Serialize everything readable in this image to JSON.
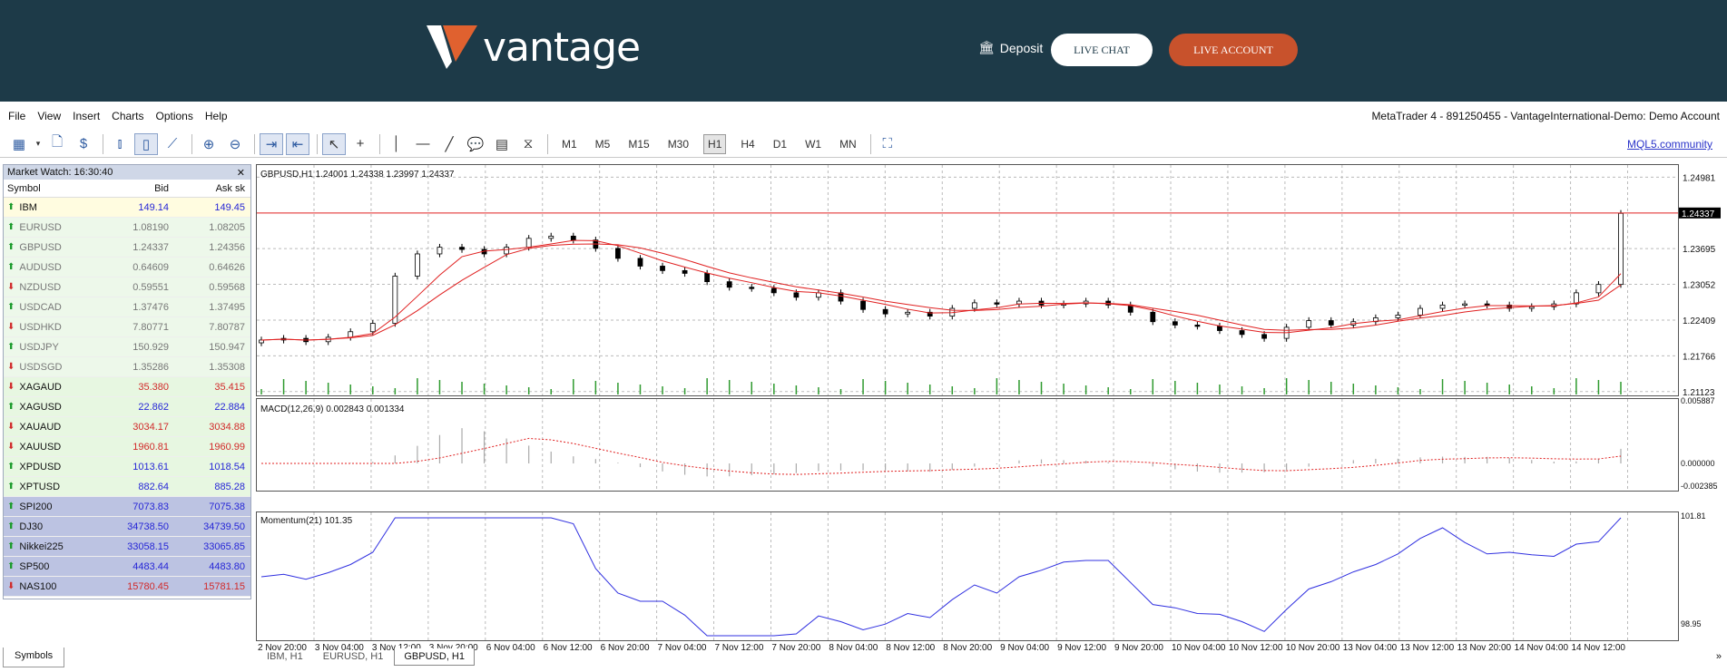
{
  "header": {
    "logo_text": "vantage",
    "deposit_label": "Deposit",
    "chat_label": "LIVE CHAT",
    "account_label": "LIVE ACCOUNT"
  },
  "menu": [
    "File",
    "View",
    "Insert",
    "Charts",
    "Options",
    "Help"
  ],
  "app_info": "MetaTrader 4 - 891250455 - VantageInternational-Demo: Demo Account",
  "toolbar": {
    "timeframes": [
      "M1",
      "M5",
      "M15",
      "M30",
      "H1",
      "H4",
      "D1",
      "W1",
      "MN"
    ],
    "active_timeframe": "H1",
    "mql_link": "MQL5.community"
  },
  "market_watch": {
    "title": "Market Watch: 16:30:40",
    "columns": [
      "Symbol",
      "Bid",
      "Ask"
    ],
    "ask_extra": "sk",
    "rows": [
      {
        "symbol": "IBM",
        "bid": "149.14",
        "ask": "149.45",
        "dir": "up",
        "group": "stock"
      },
      {
        "symbol": "EURUSD",
        "bid": "1.08190",
        "ask": "1.08205",
        "dir": "up",
        "group": "fx"
      },
      {
        "symbol": "GBPUSD",
        "bid": "1.24337",
        "ask": "1.24356",
        "dir": "up",
        "group": "fx"
      },
      {
        "symbol": "AUDUSD",
        "bid": "0.64609",
        "ask": "0.64626",
        "dir": "up",
        "group": "fx"
      },
      {
        "symbol": "NZDUSD",
        "bid": "0.59551",
        "ask": "0.59568",
        "dir": "dn",
        "group": "fx"
      },
      {
        "symbol": "USDCAD",
        "bid": "1.37476",
        "ask": "1.37495",
        "dir": "up",
        "group": "fx"
      },
      {
        "symbol": "USDHKD",
        "bid": "7.80771",
        "ask": "7.80787",
        "dir": "dn",
        "group": "fx"
      },
      {
        "symbol": "USDJPY",
        "bid": "150.929",
        "ask": "150.947",
        "dir": "up",
        "group": "fx"
      },
      {
        "symbol": "USDSGD",
        "bid": "1.35286",
        "ask": "1.35308",
        "dir": "dn",
        "group": "fx"
      },
      {
        "symbol": "XAGAUD",
        "bid": "35.380",
        "ask": "35.415",
        "dir": "dn",
        "group": "metal",
        "color": "red"
      },
      {
        "symbol": "XAGUSD",
        "bid": "22.862",
        "ask": "22.884",
        "dir": "up",
        "group": "metal",
        "color": "blue"
      },
      {
        "symbol": "XAUAUD",
        "bid": "3034.17",
        "ask": "3034.88",
        "dir": "dn",
        "group": "metal",
        "color": "red"
      },
      {
        "symbol": "XAUUSD",
        "bid": "1960.81",
        "ask": "1960.99",
        "dir": "dn",
        "group": "metal",
        "color": "red"
      },
      {
        "symbol": "XPDUSD",
        "bid": "1013.61",
        "ask": "1018.54",
        "dir": "up",
        "group": "metal",
        "color": "blue"
      },
      {
        "symbol": "XPTUSD",
        "bid": "882.64",
        "ask": "885.28",
        "dir": "up",
        "group": "metal",
        "color": "blue"
      },
      {
        "symbol": "SPI200",
        "bid": "7073.83",
        "ask": "7075.38",
        "dir": "up",
        "group": "index",
        "color": "blue"
      },
      {
        "symbol": "DJ30",
        "bid": "34738.50",
        "ask": "34739.50",
        "dir": "up",
        "group": "index",
        "color": "blue"
      },
      {
        "symbol": "Nikkei225",
        "bid": "33058.15",
        "ask": "33065.85",
        "dir": "up",
        "group": "index",
        "color": "blue"
      },
      {
        "symbol": "SP500",
        "bid": "4483.44",
        "ask": "4483.80",
        "dir": "up",
        "group": "index",
        "color": "blue"
      },
      {
        "symbol": "NAS100",
        "bid": "15780.45",
        "ask": "15781.15",
        "dir": "dn",
        "group": "index",
        "color": "red"
      }
    ],
    "tab": "Symbols"
  },
  "chart_tabs": [
    {
      "label": "IBM, H1",
      "active": false
    },
    {
      "label": "EURUSD, H1",
      "active": false
    },
    {
      "label": "GBPUSD, H1",
      "active": true
    }
  ],
  "chart_data": {
    "type": "line",
    "title": "GBPUSD,H1  1.24001 1.24338 1.23997 1.24337",
    "price_axis": [
      "1.24981",
      "1.23695",
      "1.23052",
      "1.22409",
      "1.21766",
      "1.21123"
    ],
    "current_price": "1.24337",
    "ylim": [
      1.2107,
      1.2515
    ],
    "x_labels": [
      "2 Nov 20:00",
      "3 Nov 04:00",
      "3 Nov 12:00",
      "3 Nov 20:00",
      "6 Nov 04:00",
      "6 Nov 12:00",
      "6 Nov 20:00",
      "7 Nov 04:00",
      "7 Nov 12:00",
      "7 Nov 20:00",
      "8 Nov 04:00",
      "8 Nov 12:00",
      "8 Nov 20:00",
      "9 Nov 04:00",
      "9 Nov 12:00",
      "9 Nov 20:00",
      "10 Nov 04:00",
      "10 Nov 12:00",
      "10 Nov 20:00",
      "13 Nov 04:00",
      "13 Nov 12:00",
      "13 Nov 20:00",
      "14 Nov 04:00",
      "14 Nov 12:00"
    ],
    "close_series": [
      1.2205,
      1.2208,
      1.2202,
      1.221,
      1.222,
      1.2235,
      1.232,
      1.236,
      1.2372,
      1.2368,
      1.236,
      1.2372,
      1.2388,
      1.2392,
      1.2385,
      1.237,
      1.2352,
      1.2338,
      1.233,
      1.2325,
      1.231,
      1.23,
      1.2298,
      1.229,
      1.2282,
      1.229,
      1.2275,
      1.226,
      1.2252,
      1.2255,
      1.2248,
      1.2262,
      1.2272,
      1.227,
      1.2275,
      1.2268,
      1.227,
      1.2275,
      1.2268,
      1.2255,
      1.2238,
      1.2232,
      1.223,
      1.2222,
      1.2215,
      1.2208,
      1.2228,
      1.224,
      1.2232,
      1.2238,
      1.2245,
      1.225,
      1.2262,
      1.2268,
      1.227,
      1.2268,
      1.2262,
      1.2265,
      1.227,
      1.229,
      1.2305,
      1.2433
    ],
    "indicators": {
      "macd_label": "MACD(12,26,9) 0.002843 0.001334",
      "macd_axis": [
        "0.005887",
        "0.000000",
        "-0.002385"
      ],
      "momentum_label": "Momentum(21) 101.35",
      "momentum_axis": [
        "101.81",
        "98.95"
      ]
    },
    "colors": {
      "candle_line": "#000000",
      "ma": "#e02020",
      "volume": "#2e9a2e",
      "momentum": "#3030e0",
      "macd_signal": "#e02020",
      "price_line": "#e02020"
    }
  }
}
